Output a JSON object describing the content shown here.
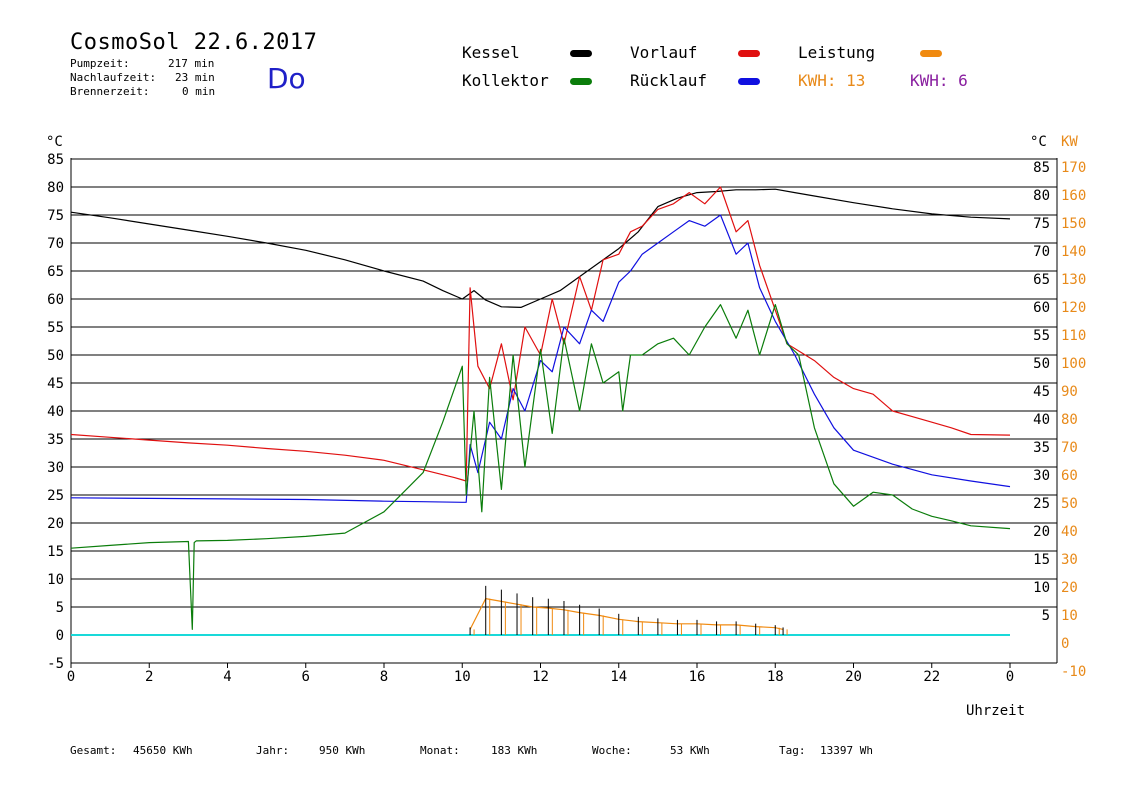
{
  "header": {
    "title": "CosmoSol 22.6.2017",
    "day": "Do",
    "stats": [
      {
        "label": "Pumpzeit:",
        "value": "217 min"
      },
      {
        "label": "Nachlaufzeit:",
        "value": "23 min"
      },
      {
        "label": "Brennerzeit:",
        "value": "0 min"
      }
    ]
  },
  "legend": {
    "kessel": {
      "label": "Kessel",
      "color": "#000000"
    },
    "vorlauf": {
      "label": "Vorlauf",
      "color": "#e01010"
    },
    "leistung": {
      "label": "Leistung",
      "color": "#f08a10"
    },
    "kollektor": {
      "label": "Kollektor",
      "color": "#0b7d0b"
    },
    "ruecklauf": {
      "label": "Rücklauf",
      "color": "#1010e0"
    },
    "kwh1": {
      "label": "KWH: 13",
      "color": "#e88a1a"
    },
    "kwh2": {
      "label": "KWH: 6",
      "color": "#8a20a0"
    }
  },
  "footer": {
    "gesamt": {
      "label": "Gesamt:",
      "value": "45650 KWh"
    },
    "jahr": {
      "label": "Jahr:",
      "value": "950 KWh"
    },
    "monat": {
      "label": "Monat:",
      "value": "183 KWh"
    },
    "woche": {
      "label": "Woche:",
      "value": "53 KWh"
    },
    "tag": {
      "label": "Tag:",
      "value": "13397 Wh"
    }
  },
  "chart_data": {
    "type": "line",
    "xlabel": "Uhrzeit",
    "ylabel_left": "°C",
    "ylabel_right_1": "°C",
    "ylabel_right_2": "KW",
    "xlim": [
      0,
      24
    ],
    "ylim": [
      -5,
      85
    ],
    "x_ticks": [
      "0",
      "2",
      "4",
      "6",
      "8",
      "10",
      "12",
      "14",
      "16",
      "18",
      "20",
      "22",
      "0"
    ],
    "y_ticks_left": [
      "-5",
      "0",
      "5",
      "10",
      "15",
      "20",
      "25",
      "30",
      "35",
      "40",
      "45",
      "50",
      "55",
      "60",
      "65",
      "70",
      "75",
      "80",
      "85"
    ],
    "y_ticks_right_c": [
      "5",
      "10",
      "15",
      "20",
      "25",
      "30",
      "35",
      "40",
      "45",
      "50",
      "55",
      "60",
      "65",
      "70",
      "75",
      "80",
      "85"
    ],
    "y_ticks_right_kw": [
      "-10",
      "0",
      "10",
      "20",
      "30",
      "40",
      "50",
      "60",
      "70",
      "80",
      "90",
      "100",
      "110",
      "120",
      "130",
      "140",
      "150",
      "160",
      "170"
    ],
    "grid": true,
    "series": [
      {
        "name": "Kessel",
        "color": "#000000",
        "x": [
          0,
          1,
          2,
          3,
          4,
          5,
          6,
          7,
          8,
          9,
          9.5,
          10,
          10.3,
          10.6,
          11,
          11.5,
          12,
          12.5,
          13,
          13.5,
          14,
          14.5,
          15,
          15.5,
          16,
          16.5,
          17,
          17.5,
          18,
          18.5,
          19,
          20,
          21,
          22,
          23,
          24
        ],
        "y": [
          75.5,
          74.5,
          73.4,
          72.3,
          71.2,
          70,
          68.7,
          67,
          65,
          63.2,
          61.5,
          60,
          61.5,
          59.8,
          58.6,
          58.5,
          60,
          61.5,
          64,
          66.5,
          69,
          72,
          76.5,
          78,
          79,
          79.2,
          79.5,
          79.5,
          79.6,
          79,
          78.4,
          77.2,
          76.1,
          75.2,
          74.6,
          74.3
        ]
      },
      {
        "name": "Vorlauf",
        "color": "#e01010",
        "x": [
          0,
          1,
          2,
          3,
          4,
          5,
          6,
          7,
          8,
          9,
          9.8,
          10.1,
          10.2,
          10.4,
          10.7,
          11,
          11.3,
          11.6,
          12,
          12.3,
          12.6,
          13,
          13.3,
          13.6,
          14,
          14.3,
          14.6,
          15,
          15.4,
          15.8,
          16.2,
          16.6,
          17,
          17.3,
          17.6,
          18,
          18.3,
          19,
          19.5,
          20,
          20.5,
          21,
          21.5,
          22,
          22.5,
          23,
          24
        ],
        "y": [
          35.8,
          35.3,
          34.8,
          34.3,
          33.9,
          33.3,
          32.8,
          32.1,
          31.2,
          29.5,
          28.1,
          27.5,
          62,
          48,
          44,
          52,
          42,
          55,
          50,
          60,
          52,
          64,
          58,
          67,
          68,
          72,
          73,
          76,
          77,
          79,
          77,
          80,
          72,
          74,
          66,
          58,
          52,
          49,
          46,
          44,
          43,
          40,
          39,
          38,
          37,
          35.8,
          35.7
        ]
      },
      {
        "name": "Rücklauf",
        "color": "#1010e0",
        "x": [
          0,
          2,
          4,
          6,
          8,
          9,
          10,
          10.1,
          10.2,
          10.4,
          10.7,
          11,
          11.3,
          11.6,
          12,
          12.3,
          12.6,
          13,
          13.3,
          13.6,
          14,
          14.3,
          14.6,
          15,
          15.4,
          15.8,
          16.2,
          16.6,
          17,
          17.3,
          17.6,
          18,
          18.5,
          19,
          19.5,
          20,
          21,
          22,
          23,
          24
        ],
        "y": [
          24.5,
          24.4,
          24.3,
          24.2,
          23.9,
          23.8,
          23.7,
          23.7,
          34,
          29,
          38,
          35,
          44,
          40,
          49,
          47,
          55,
          52,
          58,
          56,
          63,
          65,
          68,
          70,
          72,
          74,
          73,
          75,
          68,
          70,
          62,
          56,
          50,
          43,
          37,
          33,
          30.5,
          28.6,
          27.5,
          26.5
        ]
      },
      {
        "name": "Kollektor",
        "color": "#0b7d0b",
        "x": [
          0,
          1,
          2,
          3,
          3.1,
          3.15,
          3.2,
          4,
          5,
          6,
          7,
          8,
          8.5,
          9,
          9.5,
          10,
          10.1,
          10.3,
          10.5,
          10.7,
          11,
          11.3,
          11.6,
          12,
          12.3,
          12.6,
          13,
          13.3,
          13.6,
          14,
          14.1,
          14.3,
          14.6,
          15,
          15.4,
          15.8,
          16.2,
          16.6,
          17,
          17.3,
          17.6,
          18,
          18.3,
          18.6,
          19,
          19.5,
          20,
          20.5,
          21,
          21.5,
          22,
          22.5,
          23,
          24
        ],
        "y": [
          15.5,
          16,
          16.5,
          16.7,
          1,
          16.5,
          16.8,
          16.9,
          17.2,
          17.6,
          18.2,
          22,
          25.5,
          29,
          38,
          48,
          25,
          40,
          22,
          46,
          26,
          50,
          30,
          51,
          36,
          53,
          40,
          52,
          45,
          47,
          40,
          50,
          50,
          52,
          53,
          50,
          55,
          59,
          53,
          58,
          50,
          59,
          52,
          50,
          37,
          27,
          23,
          25.5,
          25,
          22.5,
          21.2,
          20.4,
          19.5,
          19
        ]
      },
      {
        "name": "Leistung",
        "color": "#f08a10",
        "x": [
          10.2,
          10.6,
          11,
          11.4,
          11.8,
          12.2,
          12.6,
          13,
          13.5,
          14,
          14.5,
          15,
          15.5,
          16,
          16.5,
          17,
          17.5,
          18,
          18.2
        ],
        "y": [
          1,
          6.5,
          6,
          5.5,
          5,
          4.8,
          4.5,
          4,
          3.5,
          2.8,
          2.4,
          2.2,
          2,
          2,
          1.8,
          1.8,
          1.5,
          1.3,
          1
        ]
      },
      {
        "name": "Baseline",
        "color": "#19d9d9",
        "x": [
          0,
          24
        ],
        "y": [
          0,
          0
        ]
      }
    ]
  }
}
